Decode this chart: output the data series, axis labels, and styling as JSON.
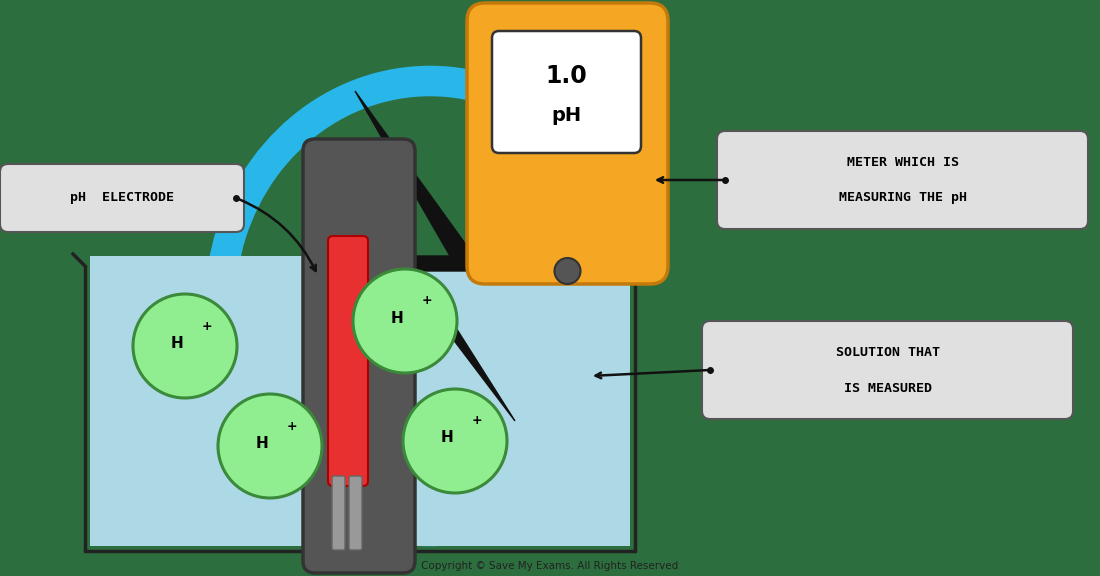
{
  "bg_color": "#2d6e3e",
  "beaker_fill": "#add8e6",
  "beaker_outline": "#222222",
  "electrode_gray": "#555555",
  "electrode_dark": "#333333",
  "red_color": "#e83030",
  "orange_color": "#f5a623",
  "orange_dark": "#c47a0a",
  "blue_arc_color": "#29b6e8",
  "green_fill": "#90ee90",
  "green_outline": "#3a8a3a",
  "label_bg": "#e0e0e0",
  "label_outline": "#555555",
  "lightning_color": "#111111",
  "black": "#111111",
  "white": "#ffffff",
  "copyright": "Copyright © Save My Exams. All Rights Reserved",
  "electrode_label": "pH  ELECTRODE",
  "meter_line1": "METER WHICH IS",
  "meter_line2": "MEASURING THE pH",
  "solution_line1": "SOLUTION THAT",
  "solution_line2": "IS MEASURED",
  "display_line1": "1.0",
  "display_line2": "pH"
}
